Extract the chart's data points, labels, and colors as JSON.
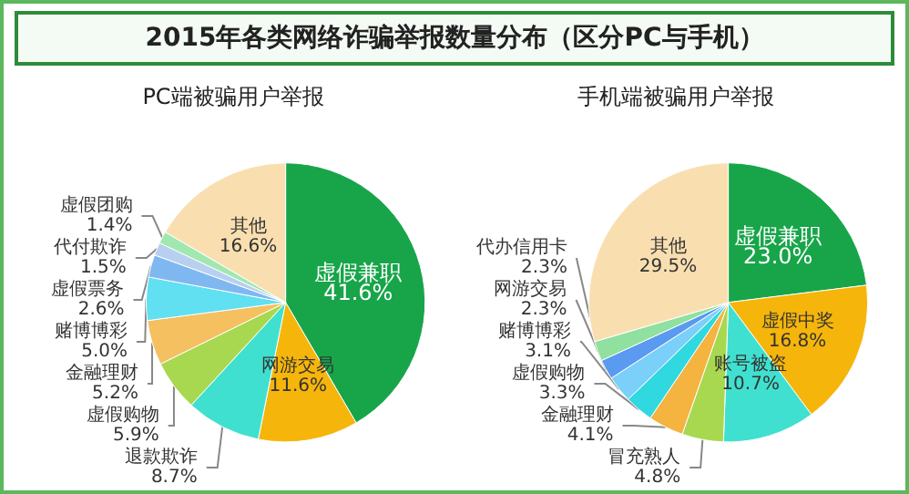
{
  "chart_data": [
    {
      "type": "pie",
      "title": "2015年各类网络诈骗举报数量分布（区分PC与手机）",
      "subtitle": "PC端被骗用户举报",
      "categories": [
        "虚假兼职",
        "网游交易",
        "退款欺诈",
        "虚假购物",
        "金融理财",
        "赌博博彩",
        "虚假票务",
        "代付欺诈",
        "虚假团购",
        "其他"
      ],
      "values": [
        41.6,
        11.6,
        8.7,
        5.9,
        5.2,
        5.0,
        2.6,
        1.5,
        1.4,
        16.6
      ],
      "value_labels": [
        "41.6%",
        "11.6%",
        "8.7%",
        "5.9%",
        "5.2%",
        "5.0%",
        "2.6%",
        "1.5%",
        "1.4%",
        "16.6%"
      ],
      "colors": [
        "#18a54a",
        "#f5b50a",
        "#40e0d0",
        "#a8d850",
        "#f5c060",
        "#60e0f0",
        "#7fb8f0",
        "#b8d0f0",
        "#a0e8b0",
        "#f9dfb0"
      ],
      "legend": false
    },
    {
      "type": "pie",
      "subtitle": "手机端被骗用户举报",
      "categories": [
        "虚假兼职",
        "虚假中奖",
        "账号被盗",
        "冒充熟人",
        "金融理财",
        "虚假购物",
        "赌博博彩",
        "网游交易",
        "代办信用卡",
        "其他"
      ],
      "values": [
        23.0,
        16.8,
        10.7,
        4.8,
        4.1,
        3.3,
        3.1,
        2.3,
        2.3,
        29.5
      ],
      "value_labels": [
        "23.0%",
        "16.8%",
        "10.7%",
        "4.8%",
        "4.1%",
        "3.3%",
        "3.1%",
        "2.3%",
        "2.3%",
        "29.5%"
      ],
      "colors": [
        "#18a54a",
        "#f5b50a",
        "#40e0d0",
        "#a8d850",
        "#f5b340",
        "#30d8e0",
        "#7ad0f8",
        "#5a9af0",
        "#90e0a0",
        "#f9dfb0"
      ],
      "legend": false
    }
  ]
}
